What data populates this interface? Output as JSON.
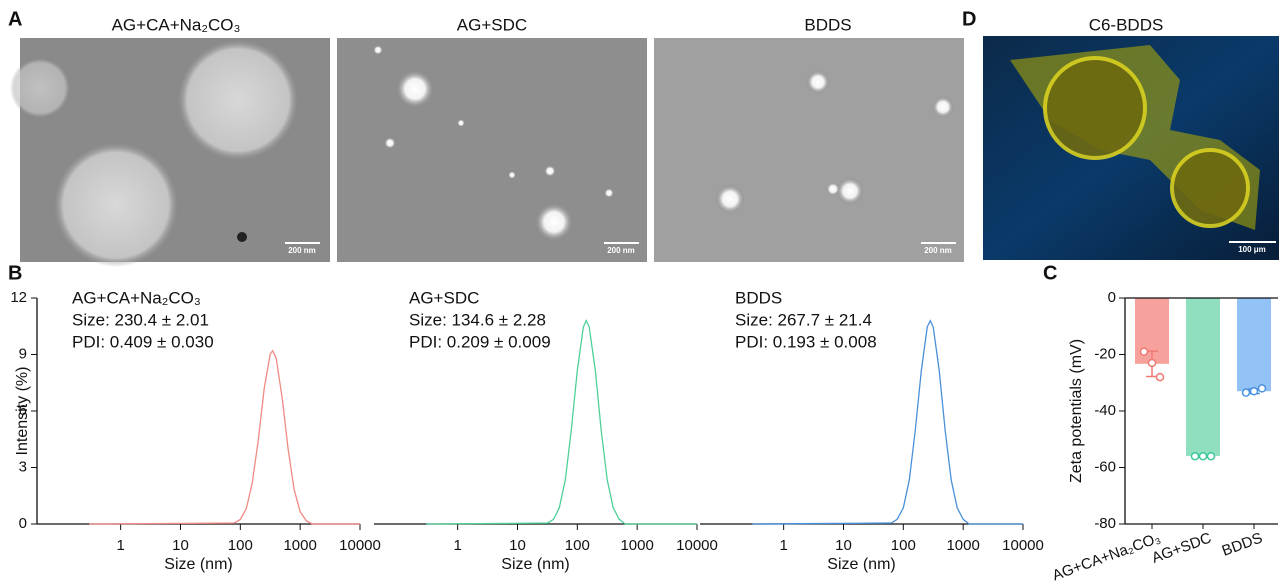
{
  "panels": [
    "A",
    "B",
    "C",
    "D"
  ],
  "images": [
    {
      "title": "AG+CA+Na₂CO₃",
      "scale_bar": "200 nm"
    },
    {
      "title": "AG+SDC",
      "scale_bar": "200 nm"
    },
    {
      "title": "BDDS",
      "scale_bar": "200 nm"
    },
    {
      "title": "C6-BDDS",
      "scale_bar": "100 μm"
    }
  ],
  "chart_data": [
    {
      "type": "line",
      "xscale": "log",
      "color": "#f08a84",
      "x": [
        0.3,
        79,
        100,
        126,
        158,
        200,
        251,
        316,
        347,
        398,
        501,
        631,
        794,
        1000,
        1259,
        1585,
        10000
      ],
      "values": [
        0,
        0.05,
        0.24,
        0.82,
        2.17,
        4.48,
        7.2,
        9.02,
        9.2,
        8.8,
        6.68,
        3.95,
        1.82,
        0.65,
        0.18,
        0,
        0
      ],
      "xlim": [
        0.04,
        10000
      ],
      "xticks": [
        1,
        10,
        100,
        1000,
        10000
      ],
      "ylim": [
        0,
        12
      ],
      "yticks": [
        0,
        3,
        6,
        9,
        12
      ],
      "xlabel": "Size (nm)",
      "ylabel": "Intensity (%)",
      "annotations": [
        "AG+CA+Na₂CO₃",
        "Size: 230.4 ± 2.01",
        "PDI: 0.409 ± 0.030"
      ]
    },
    {
      "type": "line",
      "xscale": "log",
      "color": "#4fcf98",
      "x": [
        0.3,
        32,
        40,
        50,
        63,
        79,
        100,
        126,
        141,
        158,
        200,
        251,
        316,
        398,
        501,
        631,
        10000
      ],
      "values": [
        0,
        0.05,
        0.25,
        0.86,
        2.34,
        4.95,
        8.15,
        10.46,
        10.8,
        10.46,
        8.15,
        4.95,
        2.34,
        0.86,
        0.25,
        0,
        0
      ],
      "xlim": [
        0.04,
        10000
      ],
      "xticks": [
        1,
        10,
        100,
        1000,
        10000
      ],
      "ylim": [
        0,
        12
      ],
      "xlabel": "Size (nm)",
      "annotations": [
        "AG+SDC",
        "Size: 134.6 ± 2.28",
        "PDI: 0.209 ± 0.009"
      ]
    },
    {
      "type": "line",
      "xscale": "log",
      "color": "#4a90d9",
      "x": [
        0.3,
        63,
        79,
        100,
        126,
        158,
        200,
        251,
        282,
        316,
        398,
        501,
        631,
        794,
        1000,
        1259,
        10000
      ],
      "values": [
        0,
        0.05,
        0.25,
        0.86,
        2.34,
        4.95,
        8.15,
        10.46,
        10.8,
        10.46,
        8.15,
        4.95,
        2.34,
        0.86,
        0.25,
        0,
        0
      ],
      "xlim": [
        0.04,
        10000
      ],
      "xticks": [
        1,
        10,
        100,
        1000,
        10000
      ],
      "ylim": [
        0,
        12
      ],
      "xlabel": "Size (nm)",
      "annotations": [
        "BDDS",
        "Size: 267.7 ± 21.4",
        "PDI: 0.193 ± 0.008"
      ]
    },
    {
      "type": "bar",
      "categories": [
        "AG+CA+Na₂CO₃",
        "AG+SDC",
        "BDDS"
      ],
      "values": [
        -23.3,
        -55.9,
        -33
      ],
      "errors": [
        4.5,
        0.3,
        0.8
      ],
      "points": [
        [
          -19,
          -23,
          -28
        ],
        [
          -56,
          -56,
          -56
        ],
        [
          -33.5,
          -33,
          -32
        ]
      ],
      "colors": [
        "#f6a19c",
        "#90e0c0",
        "#92c2f6"
      ],
      "point_colors": [
        "#ee7a74",
        "#3ec89c",
        "#4a92e2"
      ],
      "ylim": [
        -80,
        0
      ],
      "yticks": [
        0,
        -20,
        -40,
        -60,
        -80
      ],
      "ylabel": "Zeta potentials (mV)"
    }
  ]
}
